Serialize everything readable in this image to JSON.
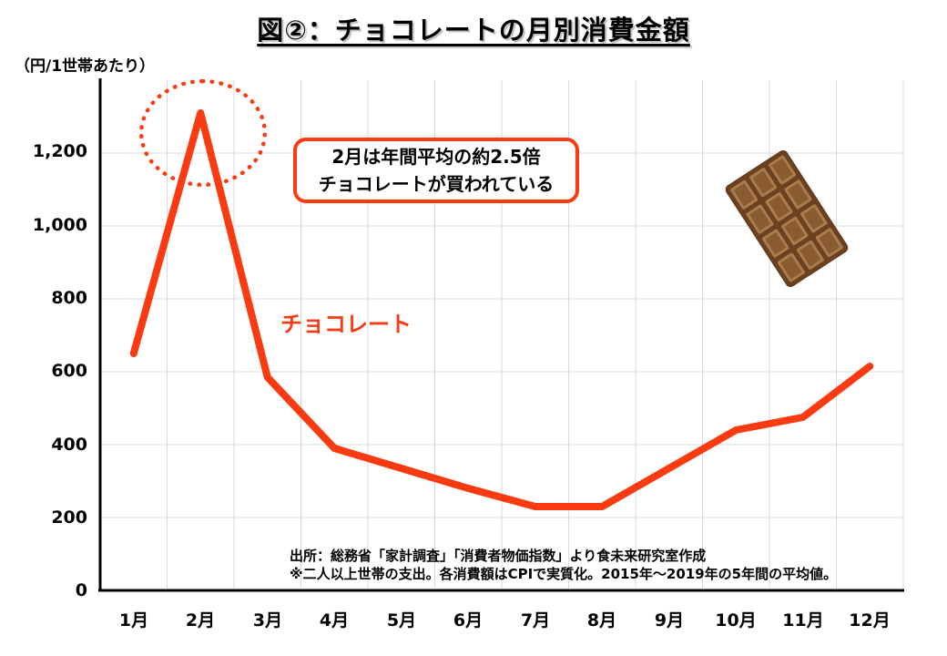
{
  "header": {
    "title": "図②：チョコレートの月別消費金額"
  },
  "chart_data": {
    "type": "line",
    "title": "図②：チョコレートの月別消費金額",
    "ylabel_unit": "（円/1世帯あたり）",
    "series_label": "チョコレート",
    "categories": [
      "1月",
      "2月",
      "3月",
      "4月",
      "5月",
      "6月",
      "7月",
      "8月",
      "9月",
      "10月",
      "11月",
      "12月"
    ],
    "values": [
      650,
      1310,
      585,
      390,
      335,
      280,
      230,
      230,
      335,
      440,
      475,
      615
    ],
    "ylim": [
      0,
      1400
    ],
    "ytick_interval": 200,
    "ytick_labels": [
      "1,200",
      "1,000",
      "800",
      "600",
      "400",
      "200",
      "0"
    ],
    "grid": true,
    "legend_position": "none",
    "line_color": "#fa3a10"
  },
  "annotation": {
    "line1": "2月は年間平均の約2.5倍",
    "line2": "チョコレートが買われている"
  },
  "source": {
    "line1": "出所：総務省「家計調査」「消費者物価指数」より食未来研究室作成",
    "line2": "※二人以上世帯の支出。各消費額はCPIで実質化。2015年～2019年の5年間の平均値。"
  },
  "colors": {
    "accent": "#fa3a10",
    "grid": "#d9d9d9",
    "axis": "#000000",
    "chocolate_dark": "#6b4120",
    "chocolate_mid": "#8a5a30",
    "chocolate_light": "#aa7c4b"
  }
}
